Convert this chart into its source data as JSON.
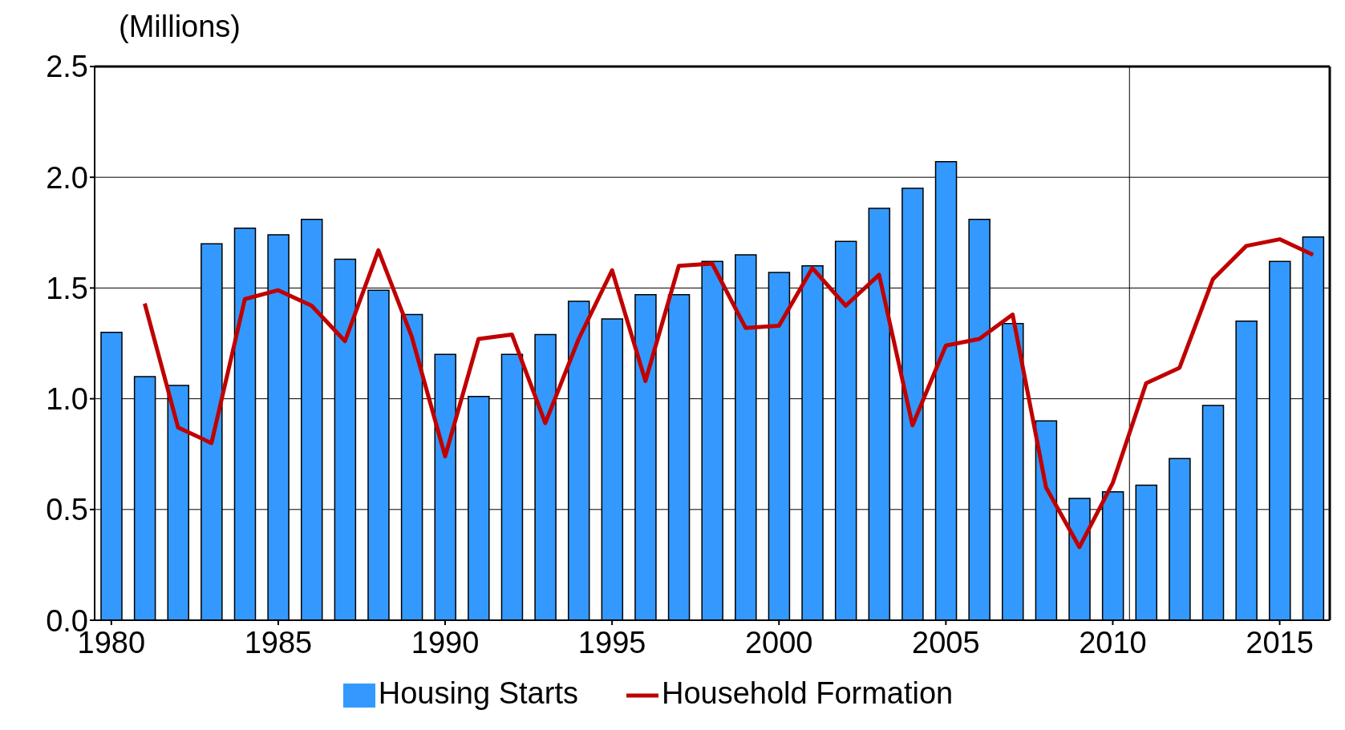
{
  "chart_data": {
    "type": "bar",
    "ylabel": "(Millions)",
    "x": [
      1980,
      1981,
      1982,
      1983,
      1984,
      1985,
      1986,
      1987,
      1988,
      1989,
      1990,
      1991,
      1992,
      1993,
      1994,
      1995,
      1996,
      1997,
      1998,
      1999,
      2000,
      2001,
      2002,
      2003,
      2004,
      2005,
      2006,
      2007,
      2008,
      2009,
      2010,
      2011,
      2012,
      2013,
      2014,
      2015,
      2016
    ],
    "series": [
      {
        "name": "Housing Starts",
        "color": "#3399ff",
        "values": [
          1.3,
          1.1,
          1.06,
          1.7,
          1.77,
          1.74,
          1.81,
          1.63,
          1.49,
          1.38,
          1.2,
          1.01,
          1.2,
          1.29,
          1.44,
          1.36,
          1.47,
          1.47,
          1.62,
          1.65,
          1.57,
          1.6,
          1.71,
          1.86,
          1.95,
          2.07,
          1.81,
          1.34,
          0.9,
          0.55,
          0.58,
          0.61,
          0.73,
          0.97,
          1.35,
          1.62,
          1.73
        ]
      },
      {
        "name": "Household Formation",
        "type": "line",
        "color": "#c00000",
        "values": [
          null,
          1.43,
          0.87,
          0.8,
          1.45,
          1.49,
          1.42,
          1.26,
          1.67,
          1.28,
          0.74,
          1.27,
          1.29,
          0.89,
          1.27,
          1.58,
          1.08,
          1.6,
          1.61,
          1.32,
          1.33,
          1.59,
          1.42,
          1.56,
          0.88,
          1.24,
          1.27,
          1.38,
          0.6,
          0.33,
          0.62,
          1.07,
          1.14,
          1.54,
          1.69,
          1.72,
          1.65
        ]
      }
    ],
    "xlim": [
      1979.5,
      2016.5
    ],
    "xticks": [
      1980,
      1985,
      1990,
      1995,
      2000,
      2005,
      2010,
      2015
    ],
    "ylim": [
      0,
      2.5
    ],
    "yticks": [
      {
        "value": 0,
        "label": "0.0"
      },
      {
        "value": 0.5,
        "label": "0.5"
      },
      {
        "value": 1,
        "label": "1.0"
      },
      {
        "value": 1.5,
        "label": "1.5"
      },
      {
        "value": 2,
        "label": "2.0"
      },
      {
        "value": 2.5,
        "label": "2.5"
      }
    ],
    "ref_lines": [
      {
        "axis": "x",
        "value": 2010.5,
        "color": "#000000"
      }
    ],
    "grid": "y",
    "legend": "bottom",
    "marker": "none",
    "line_style": "solid"
  }
}
